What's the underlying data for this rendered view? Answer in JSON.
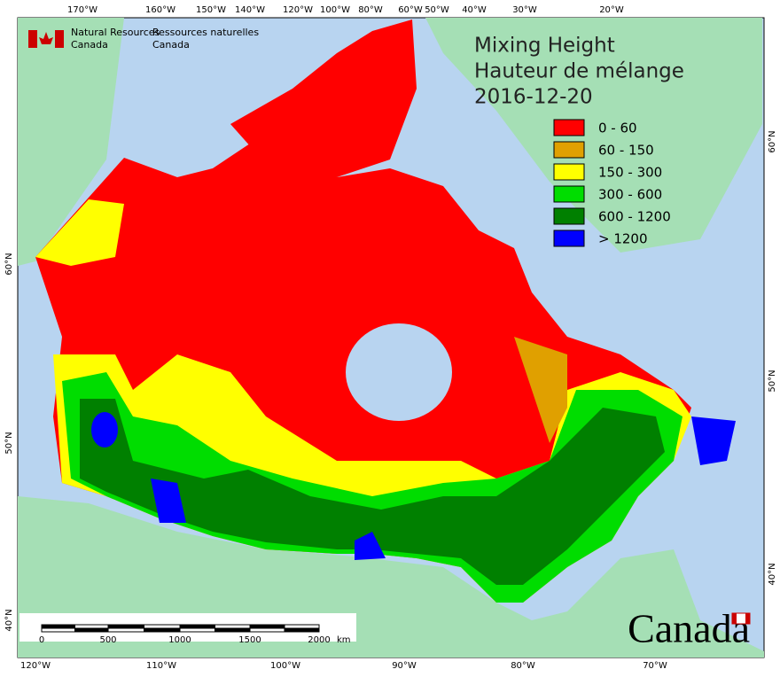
{
  "header": {
    "agency_en": [
      "Natural Resources",
      "Canada"
    ],
    "agency_fr": [
      "Ressources naturelles",
      "Canada"
    ]
  },
  "title": [
    "Mixing Height",
    "Hauteur de mélange",
    "2016-12-20"
  ],
  "legend": [
    {
      "label": "0 - 60",
      "color": "#ff0000"
    },
    {
      "label": "60 - 150",
      "color": "#e0a000"
    },
    {
      "label": "150 - 300",
      "color": "#ffff00"
    },
    {
      "label": "300 - 600",
      "color": "#00dd00"
    },
    {
      "label": "600 - 1200",
      "color": "#008000"
    },
    {
      "label": "> 1200",
      "color": "#0000ff"
    }
  ],
  "graticule": {
    "top": [
      "170°W",
      "160°W",
      "150°W",
      "140°W",
      "120°W",
      "100°W",
      "80°W",
      "60°W",
      "50°W",
      "40°W",
      "30°W",
      "20°W"
    ],
    "bottom": [
      "120°W",
      "110°W",
      "100°W",
      "90°W",
      "80°W",
      "70°W"
    ],
    "left": [
      "60°N",
      "50°N",
      "40°N"
    ],
    "right": [
      "60°N",
      "50°N",
      "40°N"
    ]
  },
  "scale_bar": {
    "labels": [
      "0",
      "500",
      "1000",
      "1500",
      "2000"
    ],
    "unit": "km"
  },
  "wordmark": "Canada"
}
